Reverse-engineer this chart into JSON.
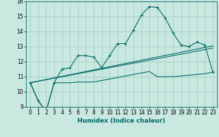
{
  "title": "",
  "xlabel": "Humidex (Indice chaleur)",
  "ylabel": "",
  "background_color": "#c8e8e0",
  "grid_color": "#a8ccc8",
  "line_color": "#006868",
  "xlim": [
    -0.5,
    23.5
  ],
  "ylim": [
    9,
    16
  ],
  "xticks": [
    0,
    1,
    2,
    3,
    4,
    5,
    6,
    7,
    8,
    9,
    10,
    11,
    12,
    13,
    14,
    15,
    16,
    17,
    18,
    19,
    20,
    21,
    22,
    23
  ],
  "yticks": [
    9,
    10,
    11,
    12,
    13,
    14,
    15,
    16
  ],
  "series1_x": [
    0,
    1,
    2,
    3,
    4,
    5,
    6,
    7,
    8,
    9,
    10,
    11,
    12,
    13,
    14,
    15,
    16,
    17,
    18,
    19,
    20,
    21,
    22,
    23
  ],
  "series1_y": [
    10.6,
    9.4,
    8.7,
    10.6,
    11.5,
    11.6,
    12.4,
    12.4,
    12.3,
    11.6,
    12.4,
    13.2,
    13.2,
    14.1,
    15.1,
    15.65,
    15.6,
    14.9,
    13.9,
    13.1,
    13.0,
    13.3,
    13.1,
    11.3
  ],
  "series2_x": [
    0,
    1,
    2,
    3,
    4,
    5,
    6,
    7,
    8,
    9,
    10,
    11,
    12,
    13,
    14,
    15,
    16,
    17,
    18,
    19,
    20,
    21,
    22,
    23
  ],
  "series2_y": [
    10.6,
    9.4,
    8.7,
    10.6,
    10.6,
    10.6,
    10.65,
    10.65,
    10.65,
    10.75,
    10.85,
    10.95,
    11.05,
    11.15,
    11.25,
    11.35,
    11.0,
    11.0,
    11.0,
    11.05,
    11.1,
    11.15,
    11.2,
    11.3
  ],
  "series3_x": [
    0,
    23
  ],
  "series3_y": [
    10.6,
    12.9
  ],
  "series4_x": [
    0,
    23
  ],
  "series4_y": [
    10.6,
    13.05
  ],
  "marker": "+",
  "markersize": 3,
  "linewidth": 0.8
}
